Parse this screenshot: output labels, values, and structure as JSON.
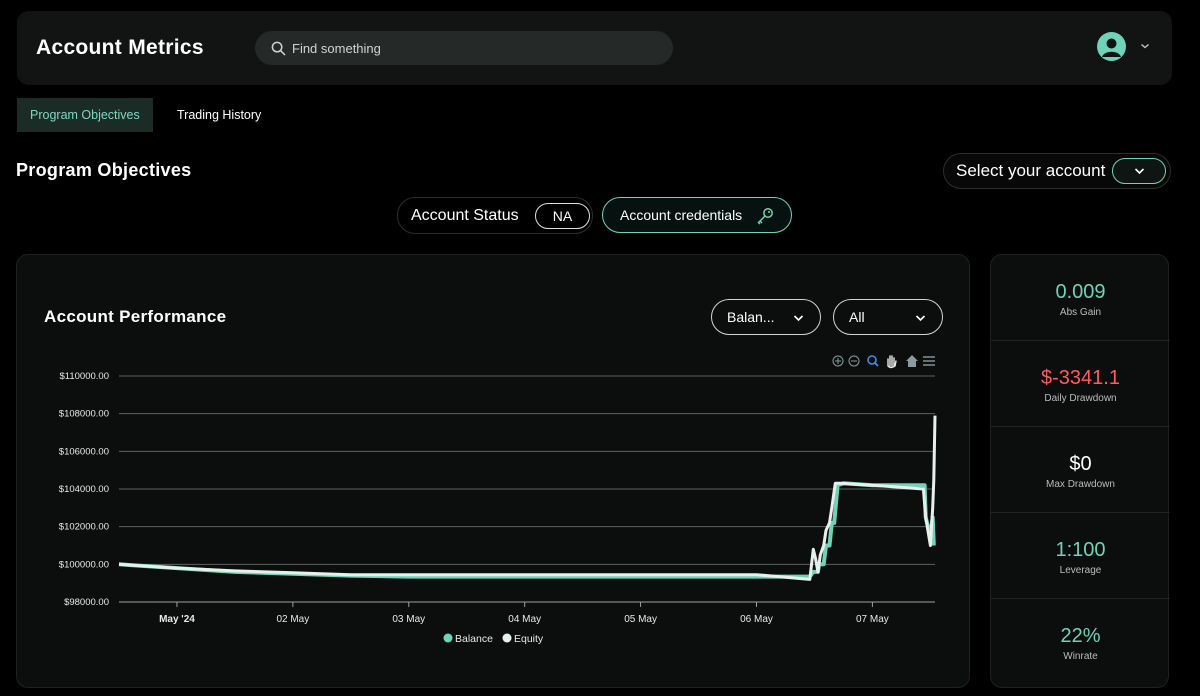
{
  "app": {
    "title": "Account Metrics"
  },
  "search": {
    "placeholder": "Find something"
  },
  "tabs": [
    {
      "label": "Program Objectives",
      "active": true
    },
    {
      "label": "Trading History",
      "active": false
    }
  ],
  "section": {
    "title": "Program Objectives"
  },
  "account_select": {
    "label": "Select your account"
  },
  "status": {
    "label": "Account Status",
    "value": "NA"
  },
  "credentials": {
    "label": "Account credentials"
  },
  "performance": {
    "title": "Account Performance",
    "metric_dropdown": "Balan...",
    "range_dropdown": "All"
  },
  "stats": [
    {
      "value": "0.009",
      "label": "Abs Gain",
      "color": "#6ed3b8"
    },
    {
      "value": "$-3341.1",
      "label": "Daily Drawdown",
      "color": "#ff5a5f"
    },
    {
      "value": "$0",
      "label": "Max Drawdown",
      "color": "#ffffff"
    },
    {
      "value": "1:100",
      "label": "Leverage",
      "color": "#6ed3b8"
    },
    {
      "value": "22%",
      "label": "Winrate",
      "color": "#6ed3b8"
    }
  ],
  "colors": {
    "accent": "#6ed3b8",
    "balance": "#6ed3b8",
    "equity": "#e8f0ed",
    "negative": "#ff5a5f"
  },
  "chart_data": {
    "type": "line",
    "x_tick_labels": [
      "May '24",
      "02 May",
      "03 May",
      "04 May",
      "05 May",
      "06 May",
      "07 May"
    ],
    "y_tick_labels": [
      "$110000.00",
      "$108000.00",
      "$106000.00",
      "$104000.00",
      "$102000.00",
      "$100000.00",
      "$98000.00"
    ],
    "xlim_days": [
      0.5,
      7.54
    ],
    "ylim": [
      98000,
      110000
    ],
    "series": [
      {
        "name": "Balance",
        "points": [
          [
            0.5,
            100000
          ],
          [
            1.0,
            99800
          ],
          [
            1.5,
            99600
          ],
          [
            2.0,
            99500
          ],
          [
            2.5,
            99400
          ],
          [
            3.0,
            99350
          ],
          [
            3.5,
            99350
          ],
          [
            4.0,
            99350
          ],
          [
            4.5,
            99350
          ],
          [
            5.0,
            99350
          ],
          [
            5.5,
            99350
          ],
          [
            6.0,
            99350
          ],
          [
            6.46,
            99350
          ],
          [
            6.49,
            99600
          ],
          [
            6.53,
            99600
          ],
          [
            6.54,
            100000
          ],
          [
            6.58,
            100000
          ],
          [
            6.6,
            101000
          ],
          [
            6.63,
            101000
          ],
          [
            6.65,
            102200
          ],
          [
            6.67,
            102200
          ],
          [
            6.7,
            104200
          ],
          [
            6.75,
            104300
          ],
          [
            7.0,
            104200
          ],
          [
            7.45,
            104200
          ],
          [
            7.46,
            102500
          ],
          [
            7.5,
            101500
          ],
          [
            7.52,
            102500
          ],
          [
            7.53,
            101000
          ]
        ]
      },
      {
        "name": "Equity",
        "points": [
          [
            0.5,
            100000
          ],
          [
            1.0,
            99800
          ],
          [
            1.5,
            99650
          ],
          [
            2.0,
            99550
          ],
          [
            2.5,
            99450
          ],
          [
            3.0,
            99450
          ],
          [
            3.5,
            99450
          ],
          [
            4.0,
            99450
          ],
          [
            4.5,
            99450
          ],
          [
            5.0,
            99450
          ],
          [
            5.5,
            99450
          ],
          [
            6.0,
            99450
          ],
          [
            6.46,
            99200
          ],
          [
            6.49,
            100800
          ],
          [
            6.51,
            100300
          ],
          [
            6.53,
            99600
          ],
          [
            6.55,
            100500
          ],
          [
            6.58,
            101000
          ],
          [
            6.6,
            101800
          ],
          [
            6.63,
            102200
          ],
          [
            6.65,
            103000
          ],
          [
            6.68,
            104300
          ],
          [
            6.72,
            104300
          ],
          [
            7.0,
            104200
          ],
          [
            7.44,
            104000
          ],
          [
            7.46,
            102500
          ],
          [
            7.5,
            101000
          ],
          [
            7.52,
            103000
          ],
          [
            7.53,
            104500
          ],
          [
            7.54,
            107900
          ]
        ]
      }
    ],
    "legend": [
      "Balance",
      "Equity"
    ],
    "legend_position": "bottom",
    "grid": true
  }
}
